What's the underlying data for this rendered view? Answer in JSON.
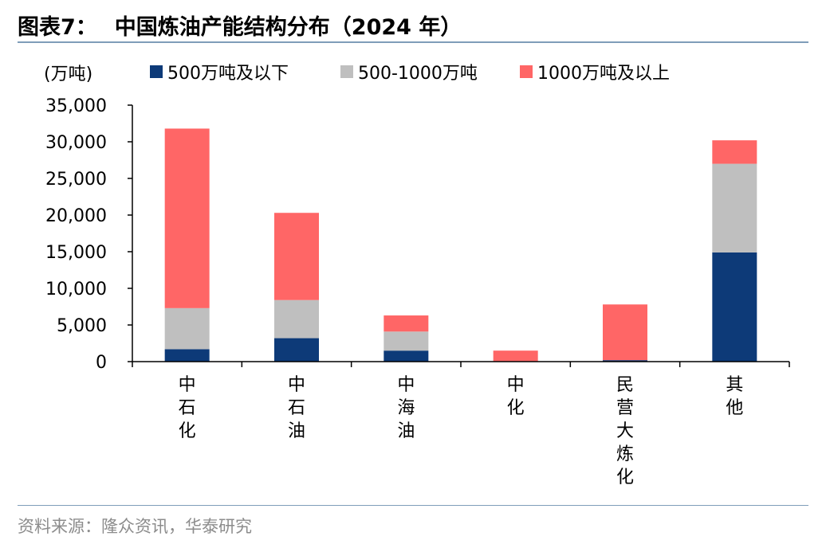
{
  "header": {
    "figure_label": "图表7：",
    "title": "中国炼油产能结构分布（2024 年）"
  },
  "source": "资料来源：隆众资讯，华泰研究",
  "colors": {
    "series_small": "#0d3a78",
    "series_mid": "#bfbfbf",
    "series_large": "#ff6666",
    "rule": "#7f9db9"
  },
  "chart_data": {
    "type": "bar",
    "stacked": true,
    "unit_label": "(万吨)",
    "categories": [
      "中石化",
      "中石油",
      "中海油",
      "中化",
      "民营大炼化",
      "其他"
    ],
    "series": [
      {
        "name": "500万吨及以下",
        "values": [
          1700,
          3200,
          1500,
          0,
          200,
          14900
        ]
      },
      {
        "name": "500-1000万吨",
        "values": [
          5600,
          5200,
          2600,
          0,
          0,
          12100
        ]
      },
      {
        "name": "1000万吨及以上",
        "values": [
          24500,
          11900,
          2200,
          1500,
          7600,
          3200
        ]
      }
    ],
    "ylim": [
      0,
      35000
    ],
    "yticks": [
      "0",
      "5,000",
      "10,000",
      "15,000",
      "20,000",
      "25,000",
      "30,000",
      "35,000"
    ],
    "legend_position": "top",
    "grid": false
  }
}
